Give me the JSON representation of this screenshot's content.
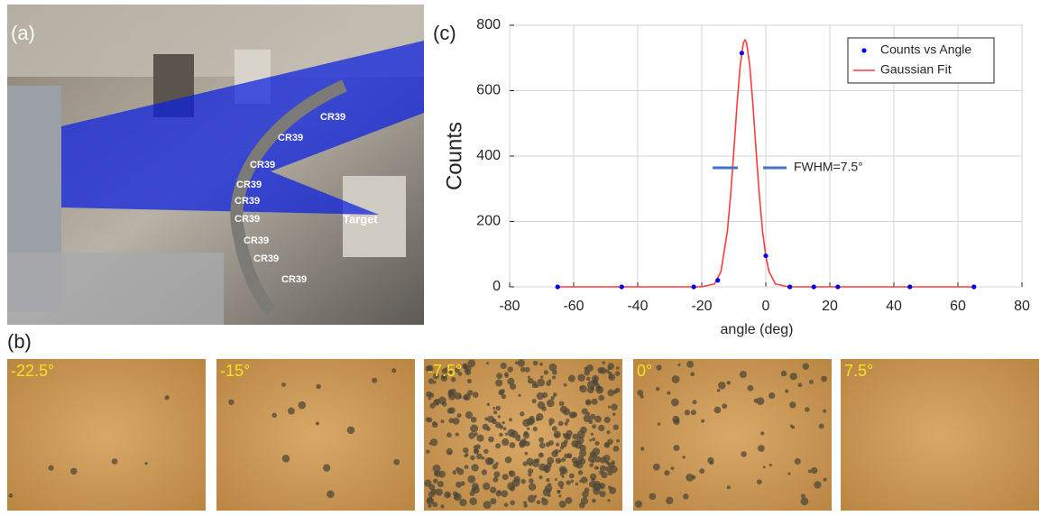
{
  "panels": {
    "a": {
      "label": "(a)",
      "annotations": [
        "CR39",
        "CR39",
        "CR39",
        "CR39",
        "CR39",
        "CR39",
        "CR39",
        "CR39",
        "CR39",
        "Target"
      ]
    },
    "b": {
      "label": "(b)",
      "images": [
        {
          "label": "-22.5°"
        },
        {
          "label": "-15°"
        },
        {
          "label": "-7.5°"
        },
        {
          "label": "0°"
        },
        {
          "label": "7.5°"
        }
      ]
    },
    "c": {
      "label": "(c)"
    }
  },
  "chart_data": {
    "type": "scatter",
    "xlabel": "angle (deg)",
    "ylabel": "Counts",
    "annotation": "FWHM=7.5°",
    "xlim": [
      -80,
      80
    ],
    "xticks": [
      -80,
      -60,
      -40,
      -20,
      0,
      20,
      40,
      60,
      80
    ],
    "ylim": [
      0,
      800
    ],
    "yticks": [
      0,
      200,
      400,
      600,
      800
    ],
    "grid": true,
    "legend": "upper right",
    "series": [
      {
        "name": "Counts vs  Angle",
        "color": "#0000ee",
        "type": "scatter",
        "x": [
          -65,
          -45,
          -22.5,
          -15,
          -7.5,
          0,
          7.5,
          15,
          22.5,
          45,
          65
        ],
        "values": [
          0,
          0,
          0,
          20,
          715,
          95,
          0,
          0,
          0,
          0,
          0
        ]
      },
      {
        "name": "Gaussian Fit",
        "color": "#ff3b3b",
        "type": "line",
        "x": [
          -65,
          -20,
          -16,
          -14,
          -12,
          -11,
          -10,
          -9,
          -8,
          -7,
          -6.5,
          -6,
          -5,
          -4,
          -3,
          -2,
          -1,
          0,
          1,
          3,
          7,
          65
        ],
        "values": [
          0,
          0,
          9,
          47,
          170,
          278,
          413,
          555,
          676,
          746,
          755,
          746,
          676,
          555,
          413,
          278,
          170,
          94,
          47,
          9,
          0,
          0
        ]
      }
    ]
  }
}
